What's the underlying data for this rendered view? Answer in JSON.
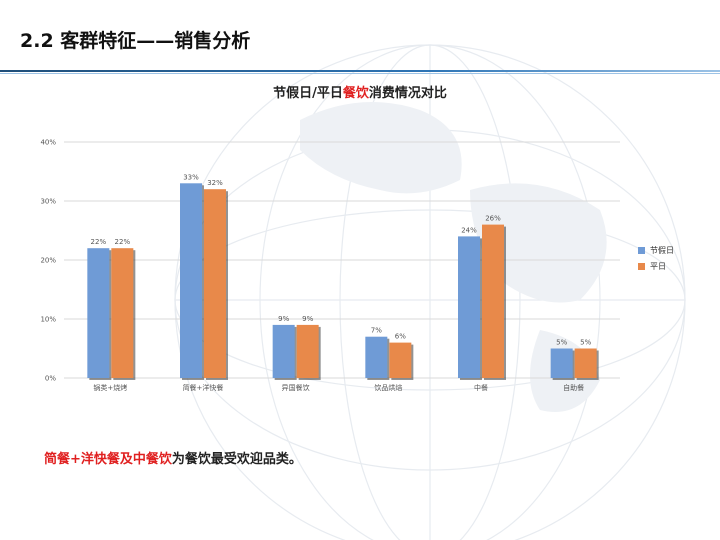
{
  "slide": {
    "title": "2.2 客群特征——销售分析",
    "chart_title": {
      "before": "节假日/平日",
      "highlight": "餐饮",
      "after": "消费情况对比"
    },
    "conclusion": {
      "highlight": "简餐+洋快餐及中餐饮",
      "rest": "为餐饮最受欢迎品类。"
    }
  },
  "colors": {
    "holiday": "#6f9bd6",
    "weekday": "#e8894a",
    "highlight": "#e02020",
    "rule": "#2e75b6"
  },
  "chart_data": {
    "type": "bar",
    "title": "节假日/平日餐饮消费情况对比",
    "xlabel": "",
    "ylabel": "",
    "categories": [
      "锅类+烧烤",
      "简餐+洋快餐",
      "异国餐饮",
      "饮品烘焙",
      "中餐",
      "自助餐"
    ],
    "series": [
      {
        "name": "节假日",
        "values": [
          22,
          33,
          9,
          7,
          24,
          5
        ],
        "labels": [
          "22%",
          "33%",
          "9%",
          "7%",
          "24%",
          "5%"
        ]
      },
      {
        "name": "平日",
        "values": [
          22,
          32,
          9,
          6,
          26,
          5
        ],
        "labels": [
          "22%",
          "32%",
          "9%",
          "6%",
          "26%",
          "5%"
        ]
      }
    ],
    "ylim": [
      0,
      40
    ],
    "yticks": [
      0,
      10,
      20,
      30,
      40
    ],
    "ytick_labels": [
      "0%",
      "10%",
      "20%",
      "30%",
      "40%"
    ],
    "grid": true,
    "legend": "right"
  }
}
